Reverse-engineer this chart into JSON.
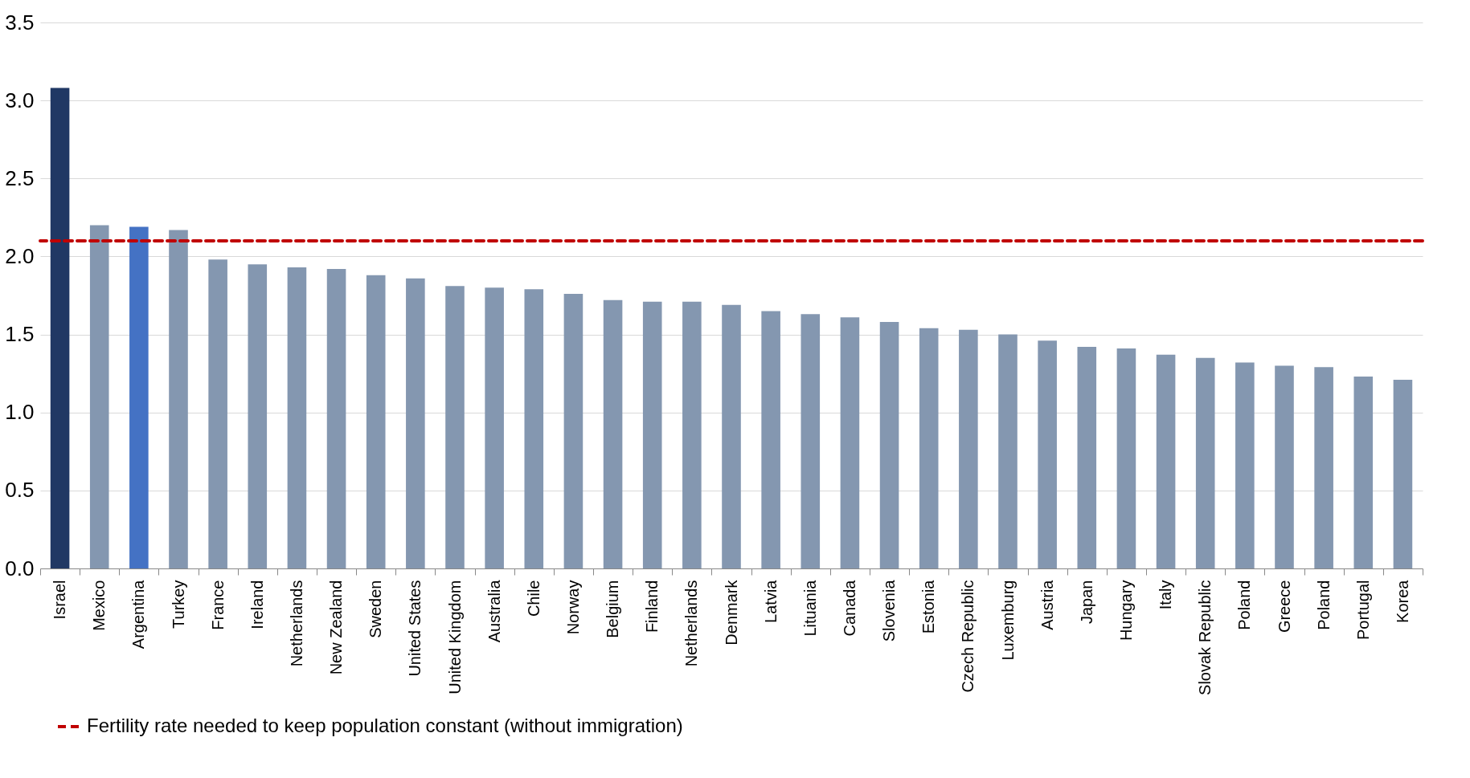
{
  "chart_data": {
    "type": "bar",
    "categories": [
      "Israel",
      "Mexico",
      "Argentina",
      "Turkey",
      "France",
      "Ireland",
      "Netherlands",
      "New Zealand",
      "Sweden",
      "United States",
      "United Kingdom",
      "Australia",
      "Chile",
      "Norway",
      "Belgium",
      "Finland",
      "Netherlands",
      "Denmark",
      "Latvia",
      "Lituania",
      "Canada",
      "Slovenia",
      "Estonia",
      "Czech Republic",
      "Luxemburg",
      "Austria",
      "Japan",
      "Hungary",
      "Italy",
      "Slovak Republic",
      "Poland",
      "Greece",
      "Poland",
      "Portugal",
      "Korea"
    ],
    "values": [
      3.08,
      2.2,
      2.19,
      2.17,
      1.98,
      1.95,
      1.93,
      1.92,
      1.88,
      1.86,
      1.81,
      1.8,
      1.79,
      1.76,
      1.72,
      1.71,
      1.71,
      1.69,
      1.65,
      1.63,
      1.61,
      1.58,
      1.54,
      1.53,
      1.5,
      1.46,
      1.42,
      1.41,
      1.37,
      1.35,
      1.32,
      1.3,
      1.29,
      1.23,
      1.21
    ],
    "colors": [
      "#203864",
      "#8497b0",
      "#4472c4",
      "#8497b0",
      "#8497b0",
      "#8497b0",
      "#8497b0",
      "#8497b0",
      "#8497b0",
      "#8497b0",
      "#8497b0",
      "#8497b0",
      "#8497b0",
      "#8497b0",
      "#8497b0",
      "#8497b0",
      "#8497b0",
      "#8497b0",
      "#8497b0",
      "#8497b0",
      "#8497b0",
      "#8497b0",
      "#8497b0",
      "#8497b0",
      "#8497b0",
      "#8497b0",
      "#8497b0",
      "#8497b0",
      "#8497b0",
      "#8497b0",
      "#8497b0",
      "#8497b0",
      "#8497b0",
      "#8497b0",
      "#8497b0"
    ],
    "ylim": [
      0,
      3.5
    ],
    "yticks": [
      {
        "value": 0,
        "label": "0.0"
      },
      {
        "value": 0.5,
        "label": "0.5"
      },
      {
        "value": 1,
        "label": "1.0"
      },
      {
        "value": 1.5,
        "label": "1.5"
      },
      {
        "value": 2,
        "label": "2.0"
      },
      {
        "value": 2.5,
        "label": "2.5"
      },
      {
        "value": 3,
        "label": "3.0"
      },
      {
        "value": 3.5,
        "label": "3.5"
      }
    ],
    "grid": "y",
    "legend": "bottom left",
    "ref_lines": [
      {
        "axis": "y",
        "value": 2.1,
        "label": "Fertility rate needed to keep population  constant (without immigration)",
        "color": "#c00000",
        "line_style": "dashed"
      }
    ]
  }
}
